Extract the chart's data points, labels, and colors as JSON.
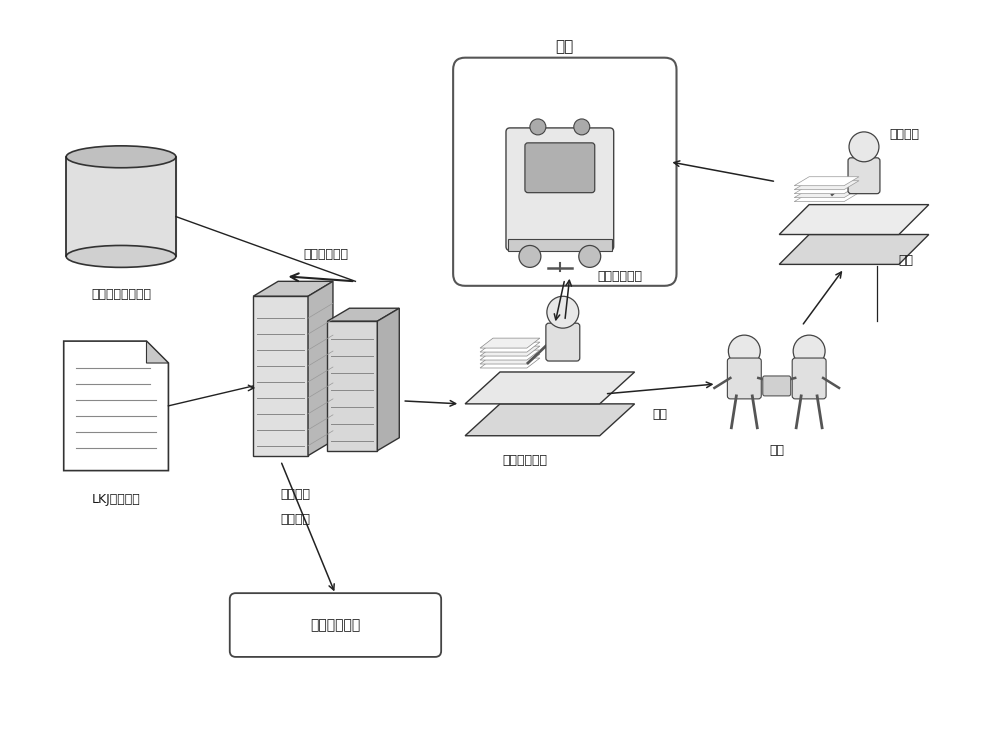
{
  "bg_color": "#ffffff",
  "text_color": "#1a1a1a",
  "line_color": "#333333",
  "labels": {
    "train": "机车",
    "vehicle_data": "车载实时状态数据",
    "lkj_file": "LKJ运行文件",
    "fault_analysis_1": "故障智能",
    "fault_analysis_2": "检测分析",
    "fault_cancel": "故障信息销号",
    "first_trip": "首趣文件分析",
    "device_updown": "设备上、下车",
    "repair_task": "检修任务流转",
    "send_repair": "送修",
    "after_repair": "修后装车",
    "repair": "检修"
  }
}
